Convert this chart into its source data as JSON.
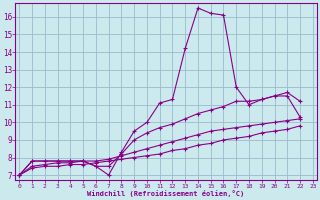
{
  "xlabel": "Windchill (Refroidissement éolien,°C)",
  "bg_color": "#cce9ee",
  "line_color": "#880088",
  "grid_color": "#99bbcc",
  "x_ticks": [
    0,
    1,
    2,
    3,
    4,
    5,
    6,
    7,
    8,
    9,
    10,
    11,
    12,
    13,
    14,
    15,
    16,
    17,
    18,
    19,
    20,
    21,
    22,
    23
  ],
  "y_ticks": [
    7,
    8,
    9,
    10,
    11,
    12,
    13,
    14,
    15,
    16
  ],
  "ylim": [
    6.7,
    16.8
  ],
  "xlim": [
    -0.3,
    23.3
  ],
  "series": [
    [
      7.0,
      7.8,
      7.8,
      7.8,
      7.8,
      7.8,
      7.5,
      7.0,
      8.3,
      9.5,
      10.0,
      11.1,
      11.3,
      14.2,
      16.5,
      16.2,
      16.1,
      12.0,
      11.0,
      11.3,
      11.5,
      11.5,
      10.3,
      null
    ],
    [
      7.0,
      7.8,
      7.8,
      7.8,
      7.8,
      7.8,
      7.5,
      7.5,
      8.2,
      9.0,
      9.4,
      9.7,
      9.9,
      10.2,
      10.5,
      10.7,
      10.9,
      11.2,
      11.2,
      11.3,
      11.5,
      11.7,
      11.2,
      null
    ],
    [
      7.0,
      7.5,
      7.6,
      7.7,
      7.7,
      7.8,
      7.8,
      7.9,
      8.1,
      8.3,
      8.5,
      8.7,
      8.9,
      9.1,
      9.3,
      9.5,
      9.6,
      9.7,
      9.8,
      9.9,
      10.0,
      10.1,
      10.2,
      null
    ],
    [
      7.0,
      7.4,
      7.5,
      7.5,
      7.6,
      7.6,
      7.7,
      7.8,
      7.9,
      8.0,
      8.1,
      8.2,
      8.4,
      8.5,
      8.7,
      8.8,
      9.0,
      9.1,
      9.2,
      9.4,
      9.5,
      9.6,
      9.8,
      null
    ]
  ]
}
